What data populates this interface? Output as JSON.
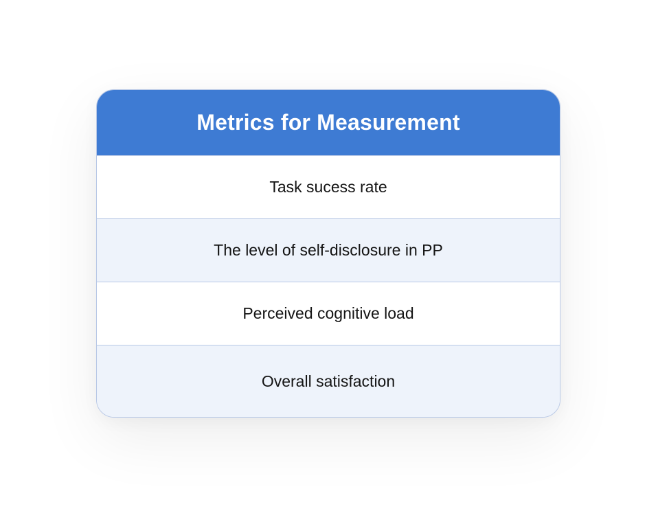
{
  "table": {
    "title": "Metrics for Measurement",
    "rows": [
      "Task sucess rate",
      "The level of self-disclosure in PP",
      "Perceived cognitive load",
      "Overall satisfaction"
    ]
  },
  "colors": {
    "header_background": "#3e7bd3",
    "alternate_row_background": "#eef3fb",
    "border": "#b8c8e6"
  }
}
